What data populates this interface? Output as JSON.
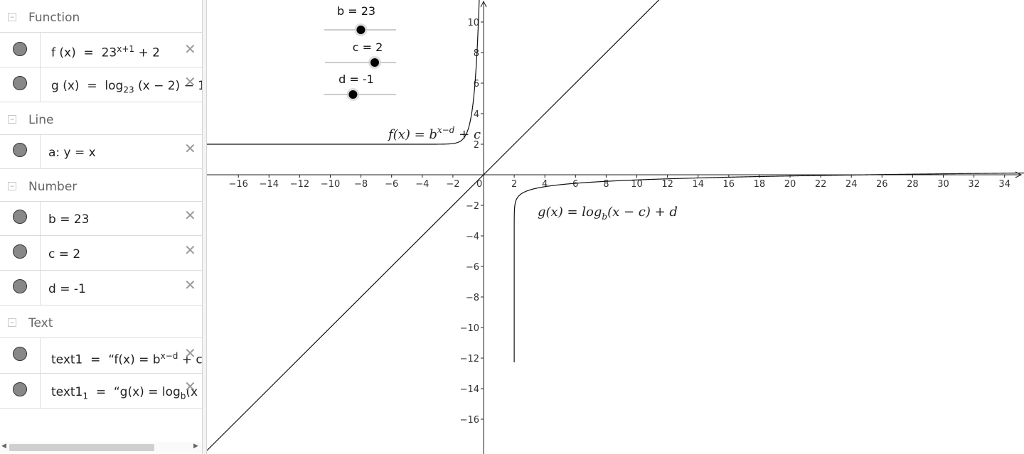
{
  "algebra": {
    "categories": {
      "function": "Function",
      "line": "Line",
      "number": "Number",
      "text": "Text"
    },
    "rows": {
      "f": {
        "name": "f",
        "arg": "(x)",
        "base": "23",
        "exp": "x+1",
        "rest": "+ 2"
      },
      "g": {
        "name": "g",
        "arg": "(x)",
        "log": "log",
        "base": "23",
        "rest": "(x − 2) − 1"
      },
      "a": {
        "text": "a: y = x"
      },
      "b": {
        "text": "b = 23"
      },
      "c": {
        "text": "c = 2"
      },
      "d": {
        "text": "d = -1"
      },
      "text1": {
        "name": "text1",
        "pre": "“f(x) = b",
        "exp": "x−d",
        "post": " + c”"
      },
      "text11": {
        "name": "text1",
        "sub": "1",
        "pre": "“g(x) = log",
        "subb": "b",
        "post": "(x − c) + d”"
      }
    }
  },
  "graphics": {
    "sliders": [
      {
        "label": "b = 23",
        "value": 23,
        "min": -5,
        "max": 50
      },
      {
        "label": "c = 2",
        "value": 2,
        "min": -5,
        "max": 5
      },
      {
        "label": "d = -1",
        "value": -1,
        "min": -5,
        "max": 5
      }
    ],
    "labels": {
      "f_pre": "f(x) = b",
      "f_exp": "x−d",
      "f_post": " + c",
      "g_pre": "g(x) = log",
      "g_sub": "b",
      "g_post": "(x − c) + d"
    },
    "x_ticks": [
      -16,
      -14,
      -12,
      -10,
      -8,
      -6,
      -4,
      -2,
      0,
      2,
      4,
      6,
      8,
      10,
      12,
      14,
      16,
      18,
      20,
      22,
      24,
      26,
      28,
      30,
      32,
      34
    ],
    "y_ticks": [
      10,
      8,
      6,
      4,
      2,
      -2,
      -4,
      -6,
      -8,
      -10,
      -12,
      -14,
      -16
    ]
  },
  "colors": {
    "curve": "#000000",
    "dot_fill": "#888888",
    "slider_knob": "#000000"
  }
}
